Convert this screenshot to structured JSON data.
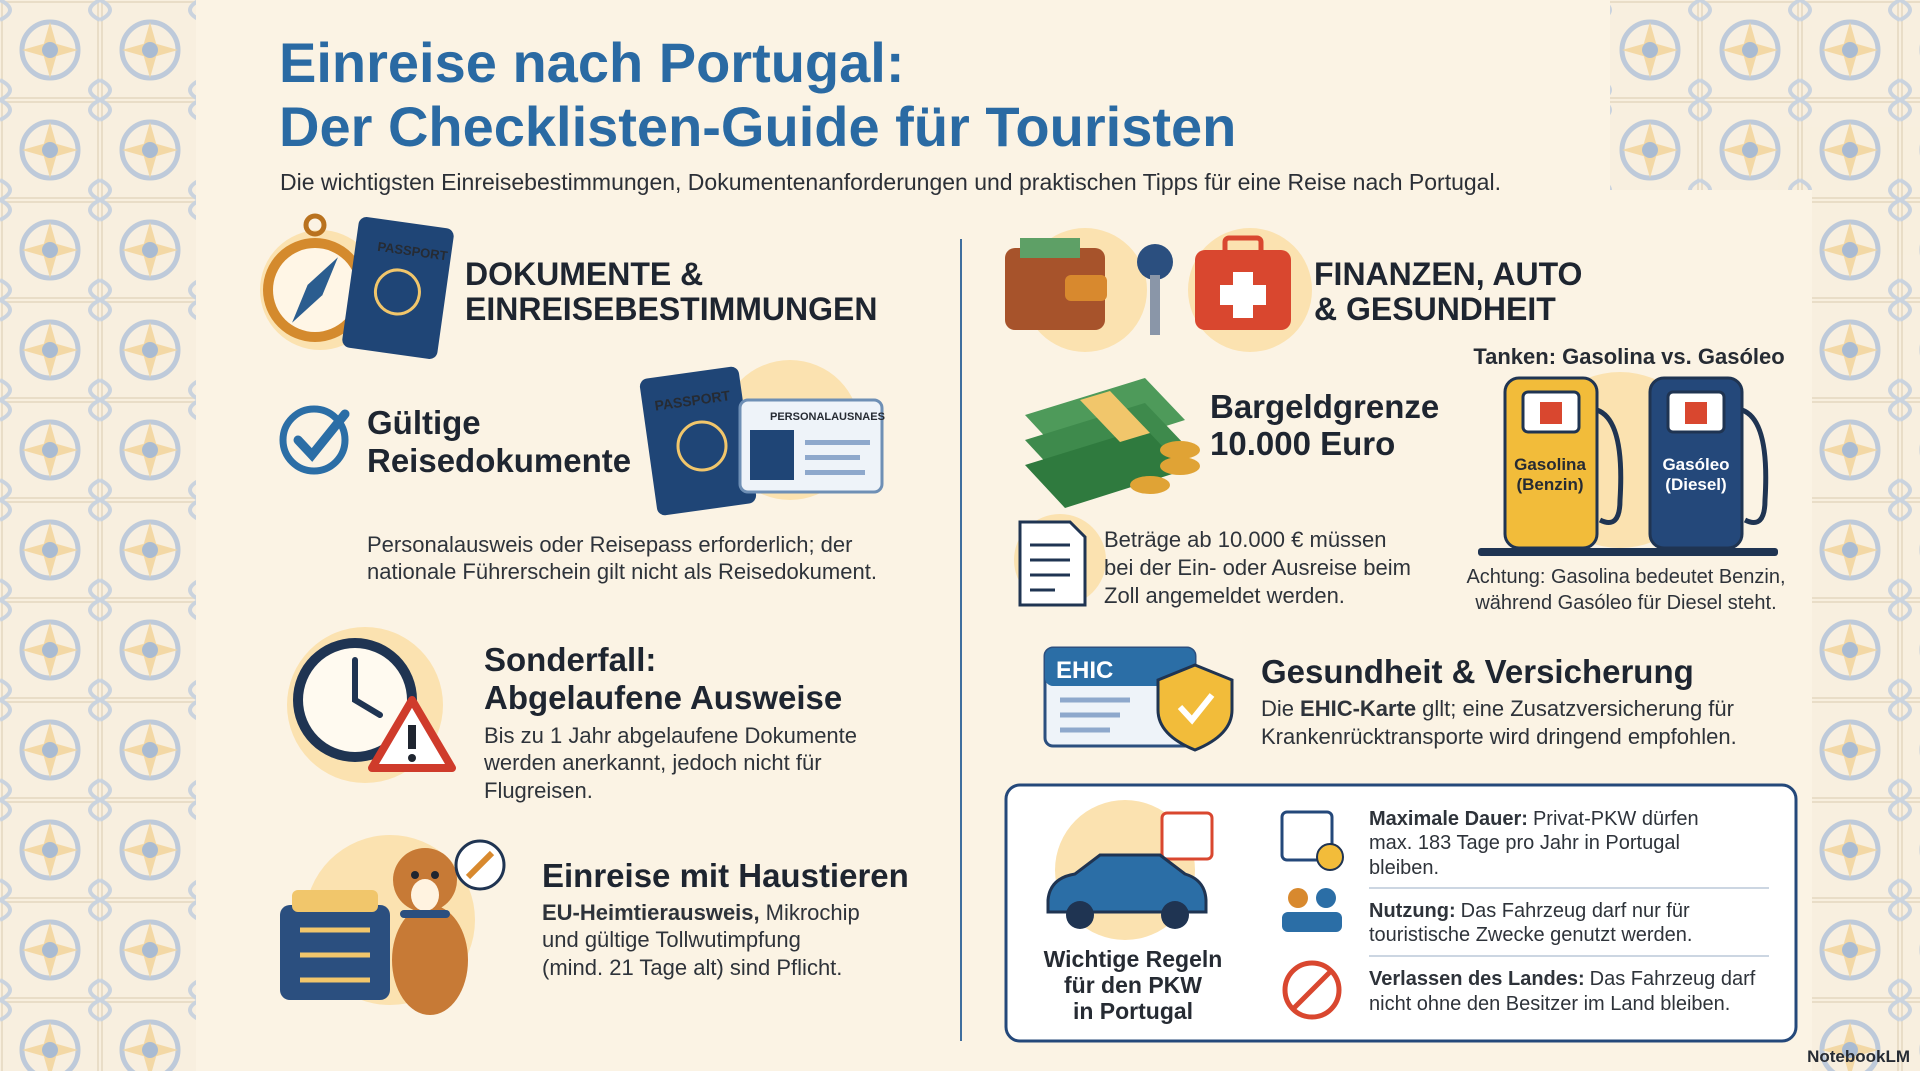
{
  "header": {
    "title_line1": "Einreise nach Portugal:",
    "title_line2": "Der Checklisten-Guide für Touristen",
    "subtitle": "Die wichtigsten Einreisebestimmungen, Dokumentenanforderungen und praktischen Tipps für eine Reise nach Portugal."
  },
  "left": {
    "heading": [
      "DOKUMENTE &",
      "EINREISEBESTIMMUNGEN"
    ],
    "documents": {
      "title": [
        "Gültige",
        "Reisedokumente"
      ],
      "passport": "PASSPORT",
      "id_card": "PERSONALAUSNAES",
      "text": [
        "Personalausweis oder Reisepass erforderlich; der",
        "nationale Führerschein gilt nicht als Reisedokument."
      ]
    },
    "expired": {
      "title": [
        "Sonderfall:",
        "Abgelaufene Ausweise"
      ],
      "text": [
        "Bis zu 1 Jahr abgelaufene Dokumente",
        "werden anerkannt, jedoch nicht für",
        "Flugreisen."
      ]
    },
    "pets": {
      "title": "Einreise mit Haustieren",
      "bold": "EU-Heimtierausweis,",
      "text": [
        "Mikrochip",
        "und gültige Tollwutimpfung",
        "(mind. 21 Tage alt) sind Pflicht."
      ]
    },
    "icon_passport": "PASSPORT"
  },
  "right": {
    "heading": [
      "FINANZEN, AUTO",
      "& GESUNDHEIT"
    ],
    "cash": {
      "title": [
        "Bargeldgrenze",
        "10.000 Euro"
      ],
      "text": [
        "Beträge ab 10.000 € müssen",
        "bei der Ein- oder Ausreise beim",
        "Zoll angemeldet werden."
      ]
    },
    "fuel": {
      "title": "Tanken: Gasolina vs. Gasóleo",
      "pump1": [
        "Gasolina",
        "(Benzin)"
      ],
      "pump2": [
        "Gasóleo",
        "(Diesel)"
      ],
      "note": [
        "Achtung: Gasolina bedeutet Benzin,",
        "während Gasóleo für Diesel steht."
      ]
    },
    "health": {
      "card": "EHIC",
      "title": "Gesundheit & Versicherung",
      "prefix": "Die",
      "bold": "EHIC-Karte",
      "rest": "gllt; eine Zusatzversicherung für",
      "line2": "Krankenrücktransporte wird dringend empfohlen."
    },
    "car": {
      "caption": [
        "Wichtige Regeln",
        "für den PKW",
        "in Portugal"
      ],
      "rules": [
        {
          "label": "Maximale Dauer:",
          "lines": [
            "Privat-PKW dürfen",
            "max. 183 Tage pro Jahr in Portugal",
            "bleiben."
          ]
        },
        {
          "label": "Nutzung:",
          "lines": [
            "Das Fahrzeug darf nur für",
            "touristische Zwecke genutzt werden."
          ]
        },
        {
          "label": "Verlassen des Landes:",
          "lines": [
            "Das Fahrzeug darf",
            "nicht ohne den Besitzer im Land bleiben."
          ]
        }
      ]
    }
  },
  "footer": {
    "brand": "NotebookLM"
  }
}
